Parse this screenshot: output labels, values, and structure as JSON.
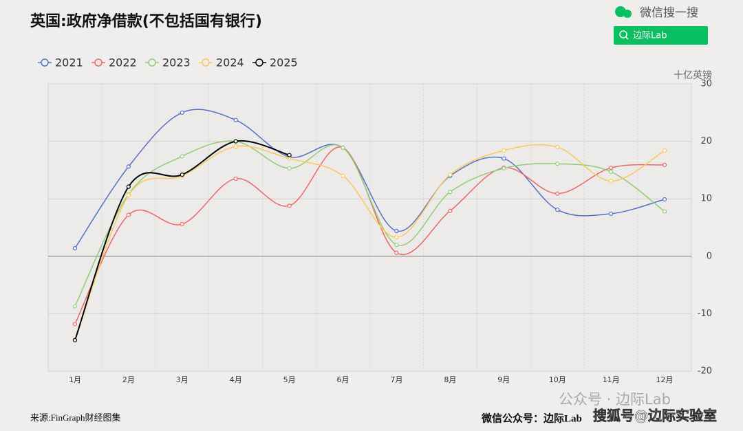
{
  "chart_data": {
    "type": "line",
    "title": "英国:政府净借款(不包括国有银行)",
    "y_label": "十亿英镑",
    "categories": [
      "1月",
      "2月",
      "3月",
      "4月",
      "5月",
      "6月",
      "7月",
      "8月",
      "9月",
      "10月",
      "11月",
      "12月"
    ],
    "series": [
      {
        "name": "2021",
        "color": "#5470c6",
        "values": [
          1.4,
          15.6,
          25,
          23.7,
          17.3,
          18.9,
          4.4,
          14,
          17,
          8.1,
          7.4,
          9.9
        ]
      },
      {
        "name": "2022",
        "color": "#ee6666",
        "values": [
          -11.8,
          7.2,
          5.6,
          13.5,
          8.8,
          18.9,
          0.6,
          7.9,
          15.4,
          10.9,
          15.4,
          15.9
        ]
      },
      {
        "name": "2023",
        "color": "#91cc75",
        "values": [
          -8.7,
          10.8,
          17.4,
          20,
          15.3,
          18.9,
          2,
          11.2,
          15.3,
          16.1,
          14.7,
          7.8
        ]
      },
      {
        "name": "2024",
        "color": "#fac858",
        "values": [
          -14.5,
          10.6,
          14,
          19.1,
          17,
          14,
          3.3,
          14.2,
          18.4,
          19,
          13.1,
          18.4
        ]
      },
      {
        "name": "2025",
        "color": "#000000",
        "values": [
          -14.6,
          12.1,
          14.2,
          20,
          17.6,
          null,
          null,
          null,
          null,
          null,
          null,
          null
        ]
      }
    ],
    "ylim": [
      -20,
      30
    ],
    "yticks": [
      -20,
      -10,
      0,
      10,
      20,
      30
    ],
    "grid": true,
    "smooth": true,
    "legend": "top-left"
  },
  "header": {
    "search_label": "微信搜一搜",
    "search_button": "边际Lab"
  },
  "footer": {
    "source": "来源:FinGraph财经图集",
    "account": "微信公众号：边际Lab",
    "watermark": "公众号 · 边际Lab",
    "sohu": "搜狐号@边际实验室"
  }
}
